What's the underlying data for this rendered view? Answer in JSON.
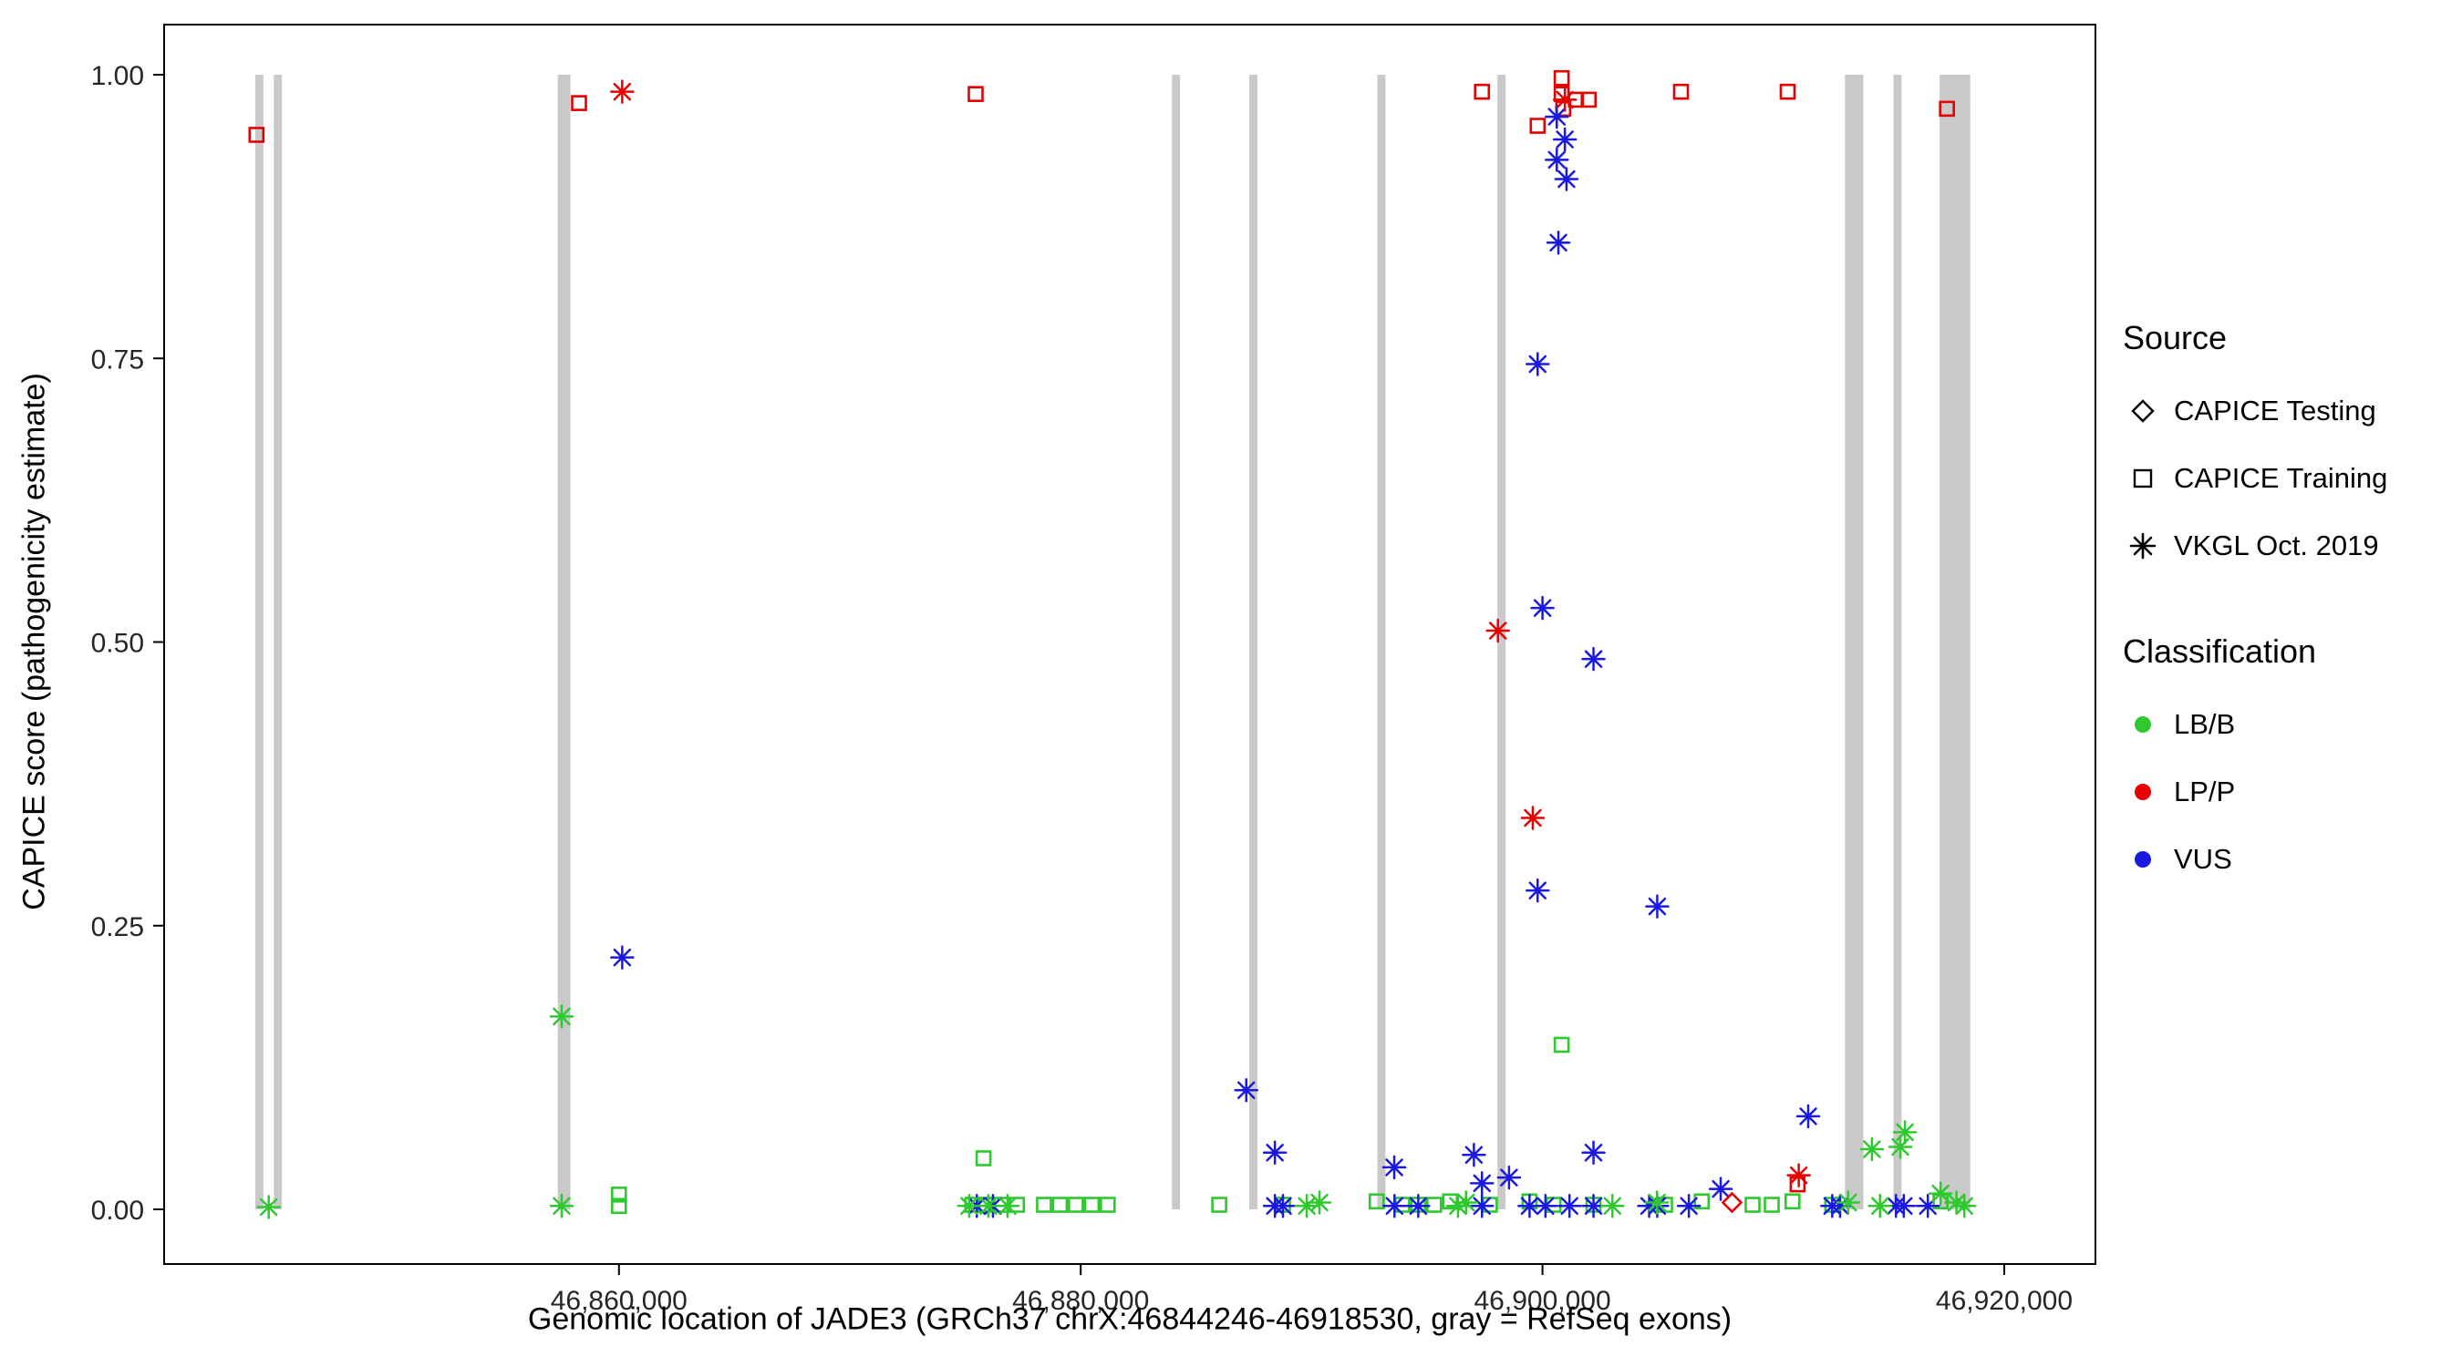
{
  "legend": {
    "source_title": "Source",
    "source_items": [
      {
        "label": "CAPICE Testing",
        "shape": "diamond"
      },
      {
        "label": "CAPICE Training",
        "shape": "square"
      },
      {
        "label": "VKGL Oct. 2019",
        "shape": "asterisk"
      }
    ],
    "classification_title": "Classification",
    "classification_items": [
      {
        "label": "LB/B",
        "color": "#2DC92D"
      },
      {
        "label": "LP/P",
        "color": "#E60000"
      },
      {
        "label": "VUS",
        "color": "#1919E0"
      }
    ]
  },
  "chart_data": {
    "type": "scatter",
    "title": "",
    "xlabel": "Genomic location of JADE3 (GRCh37 chrX:46844246-46918530, gray = RefSeq exons)",
    "ylabel": "CAPICE score (pathogenicity estimate)",
    "xlim": [
      46840300,
      46923950
    ],
    "ylim": [
      0,
      1
    ],
    "grid": false,
    "legend_position": "right",
    "x_ticks": [
      {
        "value": 46860000,
        "label": "46,860,000"
      },
      {
        "value": 46880000,
        "label": "46,880,000"
      },
      {
        "value": 46900000,
        "label": "46,900,000"
      },
      {
        "value": 46920000,
        "label": "46,920,000"
      }
    ],
    "y_ticks": [
      {
        "value": 0.0,
        "label": "0.00"
      },
      {
        "value": 0.25,
        "label": "0.25"
      },
      {
        "value": 0.5,
        "label": "0.50"
      },
      {
        "value": 0.75,
        "label": "0.75"
      },
      {
        "value": 1.0,
        "label": "1.00"
      }
    ],
    "exon_color": "#C9C9C9",
    "exons": [
      [
        46844250,
        46844600
      ],
      [
        46845050,
        46845400
      ],
      [
        46857350,
        46857900
      ],
      [
        46883950,
        46884300
      ],
      [
        46887300,
        46887650
      ],
      [
        46892850,
        46893200
      ],
      [
        46898050,
        46898400
      ],
      [
        46913100,
        46913900
      ],
      [
        46915200,
        46915550
      ],
      [
        46917200,
        46918530
      ]
    ],
    "series": [
      {
        "name": "CAPICE Training / LP/P",
        "source": "CAPICE Training",
        "classification": "LP/P",
        "shape": "square",
        "color": "#E60000",
        "points": [
          [
            46844300,
            0.947
          ],
          [
            46858270,
            0.975
          ],
          [
            46875450,
            0.983
          ],
          [
            46897380,
            0.985
          ],
          [
            46899790,
            0.955
          ],
          [
            46900830,
            0.997
          ],
          [
            46900830,
            0.983
          ],
          [
            46900900,
            0.97
          ],
          [
            46901450,
            0.978
          ],
          [
            46902000,
            0.978
          ],
          [
            46906000,
            0.985
          ],
          [
            46910620,
            0.985
          ],
          [
            46917520,
            0.97
          ],
          [
            46911050,
            0.022
          ]
        ]
      },
      {
        "name": "CAPICE Training / LB/B",
        "source": "CAPICE Training",
        "classification": "LB/B",
        "shape": "square",
        "color": "#2DC92D",
        "points": [
          [
            46860000,
            0.013
          ],
          [
            46860000,
            0.003
          ],
          [
            46875310,
            0.004
          ],
          [
            46875790,
            0.045
          ],
          [
            46875860,
            0.004
          ],
          [
            46876550,
            0.004
          ],
          [
            46877240,
            0.004
          ],
          [
            46878410,
            0.004
          ],
          [
            46879100,
            0.004
          ],
          [
            46879790,
            0.004
          ],
          [
            46880480,
            0.004
          ],
          [
            46881170,
            0.004
          ],
          [
            46886000,
            0.004
          ],
          [
            46888760,
            0.004
          ],
          [
            46892820,
            0.007
          ],
          [
            46893930,
            0.004
          ],
          [
            46894620,
            0.004
          ],
          [
            46895310,
            0.004
          ],
          [
            46896000,
            0.007
          ],
          [
            46897720,
            0.004
          ],
          [
            46899440,
            0.007
          ],
          [
            46900480,
            0.004
          ],
          [
            46900830,
            0.145
          ],
          [
            46902210,
            0.004
          ],
          [
            46905310,
            0.004
          ],
          [
            46906900,
            0.007
          ],
          [
            46909100,
            0.004
          ],
          [
            46909930,
            0.004
          ],
          [
            46910830,
            0.007
          ],
          [
            46912550,
            0.004
          ],
          [
            46917240,
            0.007
          ]
        ]
      },
      {
        "name": "VKGL Oct. 2019 / VUS",
        "source": "VKGL Oct. 2019",
        "classification": "VUS",
        "shape": "asterisk",
        "color": "#1919E0",
        "points": [
          [
            46860140,
            0.222
          ],
          [
            46875500,
            0.003
          ],
          [
            46876200,
            0.003
          ],
          [
            46887170,
            0.105
          ],
          [
            46888410,
            0.05
          ],
          [
            46888410,
            0.003
          ],
          [
            46888760,
            0.003
          ],
          [
            46893580,
            0.037
          ],
          [
            46893590,
            0.003
          ],
          [
            46894620,
            0.003
          ],
          [
            46897030,
            0.048
          ],
          [
            46897380,
            0.023
          ],
          [
            46897380,
            0.003
          ],
          [
            46898550,
            0.028
          ],
          [
            46899440,
            0.003
          ],
          [
            46899790,
            0.745
          ],
          [
            46899790,
            0.281
          ],
          [
            46900000,
            0.53
          ],
          [
            46900130,
            0.003
          ],
          [
            46900620,
            0.963
          ],
          [
            46900970,
            0.943
          ],
          [
            46900620,
            0.925
          ],
          [
            46901040,
            0.908
          ],
          [
            46900690,
            0.852
          ],
          [
            46901170,
            0.003
          ],
          [
            46902210,
            0.485
          ],
          [
            46902210,
            0.05
          ],
          [
            46902210,
            0.003
          ],
          [
            46904620,
            0.003
          ],
          [
            46904970,
            0.267
          ],
          [
            46904970,
            0.003
          ],
          [
            46906340,
            0.003
          ],
          [
            46907720,
            0.018
          ],
          [
            46911510,
            0.082
          ],
          [
            46912550,
            0.003
          ],
          [
            46912890,
            0.003
          ],
          [
            46915310,
            0.003
          ],
          [
            46915650,
            0.003
          ],
          [
            46916690,
            0.003
          ]
        ]
      },
      {
        "name": "VKGL Oct. 2019 / LP/P",
        "source": "VKGL Oct. 2019",
        "classification": "LP/P",
        "shape": "asterisk",
        "color": "#E60000",
        "points": [
          [
            46860140,
            0.985
          ],
          [
            46900970,
            0.978
          ],
          [
            46898070,
            0.51
          ],
          [
            46899580,
            0.345
          ],
          [
            46911100,
            0.03
          ]
        ]
      },
      {
        "name": "VKGL Oct. 2019 / LB/B",
        "source": "VKGL Oct. 2019",
        "classification": "LB/B",
        "shape": "asterisk",
        "color": "#2DC92D",
        "points": [
          [
            46844830,
            0.002
          ],
          [
            46857520,
            0.17
          ],
          [
            46857520,
            0.003
          ],
          [
            46875170,
            0.003
          ],
          [
            46876000,
            0.003
          ],
          [
            46876830,
            0.003
          ],
          [
            46889790,
            0.003
          ],
          [
            46890340,
            0.006
          ],
          [
            46896340,
            0.003
          ],
          [
            46896690,
            0.006
          ],
          [
            46903030,
            0.003
          ],
          [
            46904960,
            0.006
          ],
          [
            46913240,
            0.006
          ],
          [
            46914270,
            0.053
          ],
          [
            46914620,
            0.003
          ],
          [
            46915500,
            0.055
          ],
          [
            46915700,
            0.068
          ],
          [
            46917240,
            0.014
          ],
          [
            46917930,
            0.006
          ],
          [
            46918270,
            0.003
          ]
        ]
      },
      {
        "name": "CAPICE Testing / LP/P",
        "source": "CAPICE Testing",
        "classification": "LP/P",
        "shape": "diamond",
        "color": "#E60000",
        "points": [
          [
            46908210,
            0.006
          ]
        ]
      }
    ]
  }
}
